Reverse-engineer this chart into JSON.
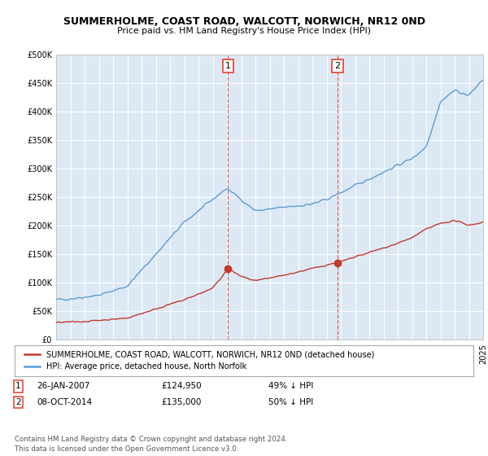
{
  "title": "SUMMERHOLME, COAST ROAD, WALCOTT, NORWICH, NR12 0ND",
  "subtitle": "Price paid vs. HM Land Registry's House Price Index (HPI)",
  "plot_bg_color": "#dce9f5",
  "hpi_color": "#5b9bd5",
  "price_color": "#c0392b",
  "marker1_x": 2007.07,
  "marker1_y": 124950,
  "marker1_label": "1",
  "marker1_date": "26-JAN-2007",
  "marker1_price": "£124,950",
  "marker1_hpi": "49% ↓ HPI",
  "marker2_x": 2014.77,
  "marker2_y": 135000,
  "marker2_label": "2",
  "marker2_date": "08-OCT-2014",
  "marker2_price": "£135,000",
  "marker2_hpi": "50% ↓ HPI",
  "ylim": [
    0,
    500000
  ],
  "xlim_start": 1995,
  "xlim_end": 2025,
  "legend_label1": "SUMMERHOLME, COAST ROAD, WALCOTT, NORWICH, NR12 0ND (detached house)",
  "legend_label2": "HPI: Average price, detached house, North Norfolk",
  "footer": "Contains HM Land Registry data © Crown copyright and database right 2024.\nThis data is licensed under the Open Government Licence v3.0."
}
